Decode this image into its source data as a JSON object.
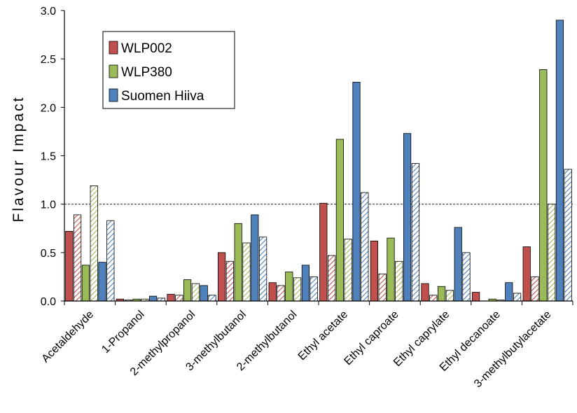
{
  "chart_data": {
    "type": "bar",
    "title": "",
    "xlabel": "",
    "ylabel": "Flavour Impact",
    "ylim": [
      0,
      3.0
    ],
    "yticks": [
      "0.0",
      "0.5",
      "1.0",
      "1.5",
      "2.0",
      "2.5",
      "3.0"
    ],
    "reference_line": 1.0,
    "legend_position": "top-left",
    "categories": [
      "Acetaldehyde",
      "1-Propanol",
      "2-methylpropanol",
      "3-methylbutanol",
      "2-methylbutanol",
      "Ethyl acetate",
      "Ethyl caproate",
      "Ethyl caprylate",
      "Ethyl decanoate",
      "3-methylbutylacetate"
    ],
    "series": [
      {
        "name": "WLP002",
        "color": "#c0504d",
        "pattern": "solid",
        "values": [
          0.72,
          0.02,
          0.07,
          0.5,
          0.19,
          1.01,
          0.62,
          0.18,
          0.09,
          0.56
        ]
      },
      {
        "color": "#c0504d",
        "pattern": "hatched",
        "values": [
          0.89,
          0.01,
          0.06,
          0.41,
          0.16,
          0.47,
          0.28,
          0.06,
          0.0,
          0.25
        ]
      },
      {
        "name": "WLP380",
        "color": "#9bbb59",
        "pattern": "solid",
        "values": [
          0.37,
          0.02,
          0.22,
          0.8,
          0.3,
          1.67,
          0.65,
          0.15,
          0.02,
          2.39
        ]
      },
      {
        "color": "#9bbb59",
        "pattern": "hatched",
        "values": [
          1.19,
          0.02,
          0.18,
          0.6,
          0.24,
          0.64,
          0.41,
          0.11,
          0.01,
          1.0
        ]
      },
      {
        "name": "Suomen Hiiva",
        "color": "#4f81bd",
        "pattern": "solid",
        "values": [
          0.4,
          0.05,
          0.16,
          0.89,
          0.37,
          2.26,
          1.73,
          0.76,
          0.19,
          2.9
        ]
      },
      {
        "color": "#4f81bd",
        "pattern": "hatched",
        "values": [
          0.83,
          0.03,
          0.06,
          0.66,
          0.25,
          1.12,
          1.42,
          0.5,
          0.08,
          1.36
        ]
      }
    ]
  }
}
